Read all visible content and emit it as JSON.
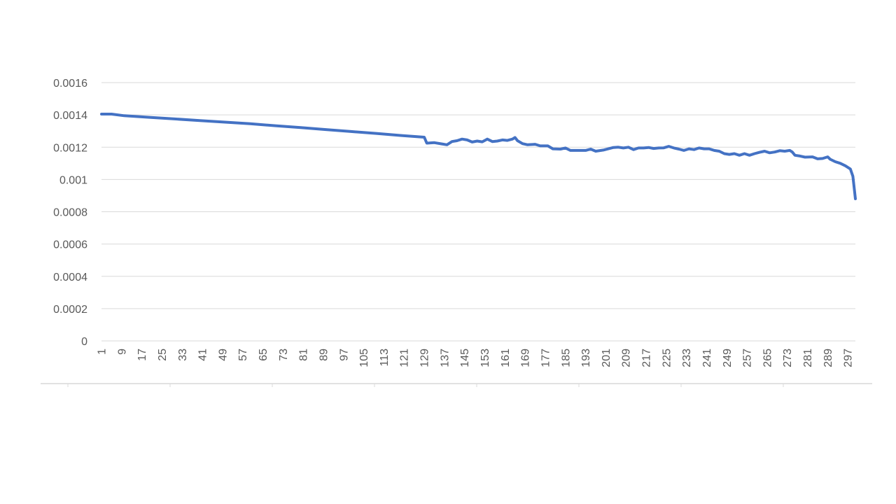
{
  "chart_data": {
    "type": "line",
    "title": "",
    "xlabel": "",
    "ylabel": "",
    "ylim": [
      0,
      0.0016
    ],
    "yticks": [
      "0",
      "0.0002",
      "0.0004",
      "0.0006",
      "0.0008",
      "0.001",
      "0.0012",
      "0.0014",
      "0.0016"
    ],
    "xtick_labels": [
      "1",
      "9",
      "17",
      "25",
      "33",
      "41",
      "49",
      "57",
      "65",
      "73",
      "81",
      "89",
      "97",
      "105",
      "113",
      "121",
      "129",
      "137",
      "145",
      "153",
      "161",
      "169",
      "177",
      "185",
      "193",
      "201",
      "209",
      "217",
      "225",
      "233",
      "241",
      "249",
      "257",
      "265",
      "273",
      "281",
      "289",
      "297"
    ],
    "x_range": [
      1,
      300
    ],
    "grid": "horizontal",
    "legend": "none",
    "series": [
      {
        "color": "#4472C4",
        "points": [
          [
            1,
            0.001405
          ],
          [
            5,
            0.001405
          ],
          [
            10,
            0.001395
          ],
          [
            20,
            0.001385
          ],
          [
            30,
            0.001375
          ],
          [
            40,
            0.001365
          ],
          [
            50,
            0.001355
          ],
          [
            60,
            0.001345
          ],
          [
            70,
            0.001333
          ],
          [
            80,
            0.001321
          ],
          [
            90,
            0.001309
          ],
          [
            100,
            0.001297
          ],
          [
            110,
            0.001285
          ],
          [
            120,
            0.001272
          ],
          [
            129,
            0.001262
          ],
          [
            130,
            0.001225
          ],
          [
            133,
            0.001228
          ],
          [
            136,
            0.00122
          ],
          [
            138,
            0.001215
          ],
          [
            140,
            0.001235
          ],
          [
            142,
            0.00124
          ],
          [
            144,
            0.00125
          ],
          [
            146,
            0.001245
          ],
          [
            148,
            0.001232
          ],
          [
            150,
            0.001238
          ],
          [
            152,
            0.001233
          ],
          [
            154,
            0.00125
          ],
          [
            156,
            0.001235
          ],
          [
            158,
            0.001238
          ],
          [
            160,
            0.001245
          ],
          [
            162,
            0.001242
          ],
          [
            164,
            0.00125
          ],
          [
            165,
            0.00126
          ],
          [
            166,
            0.00124
          ],
          [
            168,
            0.001222
          ],
          [
            170,
            0.001215
          ],
          [
            173,
            0.001218
          ],
          [
            175,
            0.001208
          ],
          [
            178,
            0.001208
          ],
          [
            180,
            0.00119
          ],
          [
            183,
            0.001188
          ],
          [
            185,
            0.001195
          ],
          [
            187,
            0.00118
          ],
          [
            190,
            0.00118
          ],
          [
            193,
            0.00118
          ],
          [
            195,
            0.001188
          ],
          [
            197,
            0.001175
          ],
          [
            200,
            0.001182
          ],
          [
            202,
            0.00119
          ],
          [
            204,
            0.001198
          ],
          [
            206,
            0.0012
          ],
          [
            208,
            0.001195
          ],
          [
            210,
            0.0012
          ],
          [
            212,
            0.001185
          ],
          [
            214,
            0.001195
          ],
          [
            216,
            0.001195
          ],
          [
            218,
            0.001198
          ],
          [
            220,
            0.001192
          ],
          [
            222,
            0.001195
          ],
          [
            224,
            0.001196
          ],
          [
            226,
            0.001205
          ],
          [
            228,
            0.001195
          ],
          [
            230,
            0.001188
          ],
          [
            232,
            0.00118
          ],
          [
            234,
            0.00119
          ],
          [
            236,
            0.001185
          ],
          [
            238,
            0.001195
          ],
          [
            240,
            0.00119
          ],
          [
            242,
            0.00119
          ],
          [
            244,
            0.00118
          ],
          [
            246,
            0.001175
          ],
          [
            248,
            0.00116
          ],
          [
            250,
            0.001155
          ],
          [
            252,
            0.00116
          ],
          [
            254,
            0.00115
          ],
          [
            256,
            0.00116
          ],
          [
            258,
            0.00115
          ],
          [
            260,
            0.00116
          ],
          [
            262,
            0.001168
          ],
          [
            264,
            0.001175
          ],
          [
            266,
            0.001165
          ],
          [
            268,
            0.00117
          ],
          [
            270,
            0.001178
          ],
          [
            272,
            0.001175
          ],
          [
            274,
            0.00118
          ],
          [
            275,
            0.00117
          ],
          [
            276,
            0.00115
          ],
          [
            278,
            0.001145
          ],
          [
            280,
            0.001138
          ],
          [
            283,
            0.00114
          ],
          [
            285,
            0.001128
          ],
          [
            287,
            0.00113
          ],
          [
            289,
            0.00114
          ],
          [
            290,
            0.001125
          ],
          [
            292,
            0.00111
          ],
          [
            294,
            0.0011
          ],
          [
            296,
            0.001085
          ],
          [
            298,
            0.001065
          ],
          [
            299,
            0.00102
          ],
          [
            300,
            0.00088
          ]
        ]
      }
    ]
  }
}
